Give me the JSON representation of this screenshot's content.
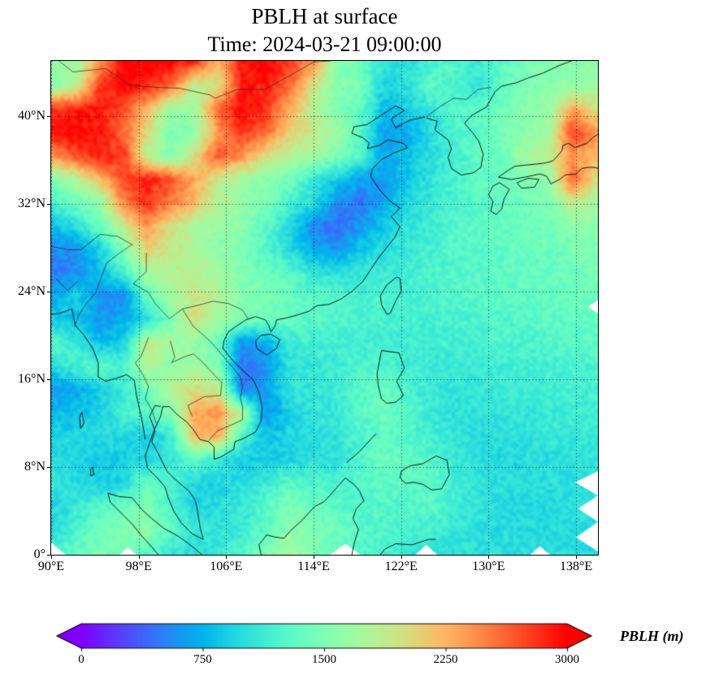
{
  "title": {
    "line1": "PBLH at surface",
    "line2": "Time: 2024-03-21 09:00:00"
  },
  "axes": {
    "lon_ticks": [
      "90°E",
      "98°E",
      "106°E",
      "114°E",
      "122°E",
      "130°E",
      "138°E"
    ],
    "lon_tick_values": [
      90,
      98,
      106,
      114,
      122,
      130,
      138
    ],
    "lat_ticks": [
      "40°N",
      "32°N",
      "24°N",
      "16°N",
      "8°N",
      "0°"
    ],
    "lat_tick_values": [
      40,
      32,
      24,
      16,
      8,
      0
    ],
    "lon_range": [
      90,
      140
    ],
    "lat_range": [
      0,
      45
    ],
    "grid": "dotted"
  },
  "colorbar": {
    "label": "PBLH (m)",
    "ticks": [
      "0",
      "750",
      "1500",
      "2250",
      "3000"
    ],
    "tick_values": [
      0,
      750,
      1500,
      2250,
      3000
    ],
    "vmin": 0,
    "vmax": 3000,
    "colormap": "rainbow",
    "extend": "both"
  },
  "chart_data": {
    "type": "heatmap",
    "title": "PBLH at surface",
    "time": "2024-03-21 09:00:00",
    "units": "m",
    "colormap": "rainbow",
    "vmin": 0,
    "vmax": 3000,
    "lon": [
      90,
      92.2,
      94.3,
      96.5,
      98.7,
      100.9,
      103,
      105.2,
      107.4,
      109.6,
      111.7,
      113.9,
      116.1,
      118.3,
      120.4,
      122.6,
      124.8,
      127,
      129.1,
      131.3,
      133.5,
      135.7,
      137.8,
      140
    ],
    "lat": [
      45,
      42.9,
      40.7,
      38.6,
      36.4,
      34.3,
      32.1,
      30,
      27.9,
      25.7,
      23.6,
      21.4,
      19.3,
      17.1,
      15,
      12.9,
      10.7,
      8.6,
      6.4,
      4.3,
      2.1,
      0
    ],
    "values": [
      [
        1600,
        1700,
        2400,
        3000,
        3000,
        3000,
        2800,
        2200,
        2900,
        3000,
        2800,
        2400,
        1600,
        1400,
        1100,
        1000,
        1200,
        1250,
        1100,
        1300,
        1450,
        1500,
        1550,
        1600
      ],
      [
        1600,
        1800,
        2800,
        3000,
        2900,
        2600,
        1800,
        2000,
        2900,
        2900,
        2600,
        2000,
        1550,
        1450,
        950,
        1000,
        1300,
        1200,
        1050,
        1350,
        1500,
        1550,
        1600,
        1700
      ],
      [
        2800,
        2900,
        2900,
        2700,
        2200,
        1600,
        1700,
        2600,
        3000,
        2800,
        2300,
        1800,
        1500,
        1350,
        800,
        900,
        1100,
        1250,
        1300,
        1400,
        1550,
        1650,
        2300,
        2000
      ],
      [
        3000,
        3000,
        2900,
        2600,
        2000,
        1500,
        1600,
        2400,
        2800,
        2600,
        2100,
        1900,
        1700,
        1300,
        650,
        700,
        1000,
        1200,
        1300,
        1450,
        1600,
        1700,
        2800,
        2400
      ],
      [
        2400,
        2700,
        2900,
        2800,
        1800,
        1500,
        2000,
        2700,
        2400,
        2000,
        1800,
        1700,
        1500,
        1250,
        700,
        800,
        1000,
        1150,
        1300,
        1400,
        1700,
        1900,
        2400,
        2200
      ],
      [
        1500,
        1800,
        2200,
        2700,
        2900,
        2700,
        2300,
        1900,
        1700,
        1550,
        1450,
        1100,
        900,
        650,
        600,
        850,
        1050,
        1200,
        1300,
        1350,
        1500,
        1600,
        2600,
        2000
      ],
      [
        1200,
        1400,
        1600,
        2500,
        2800,
        2500,
        2200,
        1800,
        1600,
        1500,
        1200,
        1000,
        600,
        450,
        700,
        950,
        1100,
        1200,
        1280,
        1350,
        1420,
        1500,
        1900,
        1700
      ],
      [
        800,
        1000,
        1400,
        1900,
        2400,
        2000,
        1750,
        1650,
        1550,
        1300,
        1000,
        550,
        400,
        600,
        850,
        1050,
        1150,
        1250,
        1300,
        1350,
        1400,
        1450,
        1550,
        1600
      ],
      [
        550,
        600,
        900,
        1500,
        2100,
        1900,
        1750,
        1600,
        1500,
        1250,
        1000,
        700,
        600,
        850,
        1000,
        1100,
        1180,
        1250,
        1300,
        1320,
        1380,
        1400,
        1450,
        1500
      ],
      [
        500,
        550,
        800,
        1200,
        1700,
        1800,
        1850,
        1700,
        1500,
        1400,
        1300,
        1050,
        1000,
        1050,
        1100,
        1150,
        1200,
        1250,
        1280,
        1300,
        1350,
        1380,
        1420,
        1450
      ],
      [
        700,
        900,
        600,
        550,
        1400,
        1700,
        1900,
        1800,
        1550,
        1450,
        1400,
        1300,
        1250,
        1200,
        1200,
        1200,
        1220,
        1250,
        1270,
        1300,
        1320,
        1340,
        1380,
        1400
      ],
      [
        900,
        800,
        600,
        700,
        1000,
        1500,
        2000,
        1700,
        1500,
        1400,
        1350,
        1280,
        1230,
        1200,
        1180,
        1160,
        1170,
        1200,
        1220,
        1250,
        1270,
        1300,
        1320,
        1350
      ],
      [
        1300,
        1100,
        800,
        900,
        1900,
        1700,
        1600,
        1400,
        600,
        700,
        1100,
        1150,
        1150,
        1150,
        1150,
        1130,
        1140,
        1160,
        1180,
        1200,
        1220,
        1250,
        1280,
        1300
      ],
      [
        1000,
        1200,
        1300,
        1200,
        1800,
        1600,
        1700,
        1500,
        450,
        600,
        1050,
        1100,
        1120,
        1200,
        1250,
        1150,
        1100,
        1100,
        1120,
        1140,
        1160,
        1180,
        1200,
        1220
      ],
      [
        600,
        700,
        900,
        1100,
        1400,
        1800,
        2000,
        1900,
        500,
        650,
        1050,
        1080,
        1100,
        1300,
        1400,
        1200,
        1080,
        1060,
        1080,
        1100,
        1120,
        1140,
        1160,
        1180
      ],
      [
        800,
        850,
        900,
        1200,
        1300,
        1500,
        2300,
        2400,
        1800,
        600,
        900,
        1050,
        1100,
        1250,
        1400,
        1300,
        1100,
        1050,
        1050,
        1060,
        1080,
        1100,
        1120,
        1140
      ],
      [
        900,
        950,
        1000,
        950,
        900,
        1100,
        2200,
        2300,
        1200,
        800,
        950,
        1000,
        1050,
        1200,
        1350,
        1250,
        1150,
        1050,
        1000,
        1020,
        1040,
        1060,
        1080,
        1100
      ],
      [
        1000,
        950,
        850,
        900,
        950,
        1100,
        1300,
        1100,
        900,
        900,
        950,
        1000,
        1050,
        1250,
        1400,
        1350,
        1250,
        1100,
        1000,
        980,
        1000,
        1020,
        1040,
        1060
      ],
      [
        1050,
        1000,
        900,
        950,
        1400,
        1200,
        950,
        950,
        1000,
        1100,
        1300,
        1250,
        1200,
        1250,
        1300,
        1300,
        1300,
        1150,
        1050,
        1000,
        1000,
        1000,
        1020,
        1040
      ],
      [
        950,
        1100,
        1250,
        1400,
        1500,
        1200,
        950,
        1000,
        1100,
        1250,
        1500,
        1400,
        1300,
        1250,
        1220,
        1250,
        1280,
        1150,
        1050,
        1000,
        980,
        980,
        1000,
        1020
      ],
      [
        1000,
        1200,
        1400,
        1550,
        1600,
        1300,
        1100,
        1050,
        1100,
        1300,
        1600,
        1500,
        1400,
        1300,
        1250,
        1200,
        1150,
        1080,
        1020,
        1000,
        990,
        990,
        1000,
        1010
      ],
      [
        1200,
        1350,
        1500,
        1400,
        1300,
        1100,
        1000,
        1100,
        1250,
        1500,
        1700,
        1500,
        1350,
        1250,
        1150,
        1100,
        1050,
        1020,
        1000,
        1000,
        1000,
        1000,
        1000,
        1000
      ]
    ],
    "missing_data_wedges": [
      [
        [
          140,
          7.6
        ],
        [
          137.9,
          6.6
        ],
        [
          140,
          5.4
        ]
      ],
      [
        [
          140,
          5.4
        ],
        [
          138.2,
          4.2
        ],
        [
          140,
          3.0
        ]
      ],
      [
        [
          140,
          3.0
        ],
        [
          138.0,
          1.6
        ],
        [
          140,
          0.3
        ]
      ],
      [
        [
          140,
          23.2
        ],
        [
          139.1,
          22.6
        ],
        [
          140,
          22.0
        ]
      ],
      [
        [
          115.5,
          0
        ],
        [
          116.9,
          1.0
        ],
        [
          118.3,
          0
        ]
      ],
      [
        [
          123.3,
          0
        ],
        [
          124.3,
          0.9
        ],
        [
          125.3,
          0
        ]
      ],
      [
        [
          133.8,
          0
        ],
        [
          134.7,
          0.8
        ],
        [
          135.6,
          0
        ]
      ],
      [
        [
          90,
          0
        ],
        [
          90,
          1.1
        ],
        [
          91.3,
          0
        ]
      ],
      [
        [
          96.3,
          0
        ],
        [
          97.0,
          0.7
        ],
        [
          97.8,
          0
        ]
      ]
    ]
  }
}
